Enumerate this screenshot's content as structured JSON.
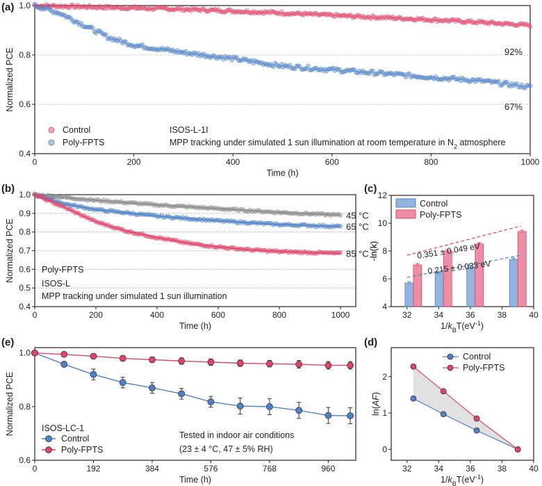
{
  "colors": {
    "control": "#e0446a",
    "poly": "#4f82c6",
    "gray": "#8c8c8c",
    "axis": "#222222",
    "grid": "#aaaaaa",
    "fillShade": "#d9d9d9"
  },
  "chart_data": [
    {
      "panel": "(a)",
      "type": "scatter",
      "xlabel": "Time (h)",
      "ylabel": "Normalized PCE",
      "xlim": [
        0,
        1000
      ],
      "ylim": [
        0.4,
        1.0
      ],
      "xticks": [
        0,
        200,
        400,
        600,
        800,
        1000
      ],
      "yticks": [
        0.4,
        0.6,
        0.8,
        1.0
      ],
      "ytick_labels": [
        "0.4",
        "0.6",
        "0.8",
        "1.0"
      ],
      "gridlines_y": [
        0.6,
        0.8,
        1.0
      ],
      "series": [
        {
          "name": "Control",
          "color": "control",
          "x": [
            0,
            100,
            200,
            300,
            400,
            500,
            600,
            700,
            800,
            900,
            1000
          ],
          "y": [
            1.0,
            0.995,
            0.99,
            0.985,
            0.978,
            0.97,
            0.96,
            0.952,
            0.943,
            0.932,
            0.92
          ],
          "end_label": "92%"
        },
        {
          "name": "Poly-FPTS",
          "color": "poly",
          "x": [
            0,
            50,
            100,
            150,
            200,
            300,
            400,
            500,
            600,
            700,
            800,
            900,
            1000
          ],
          "y": [
            1.0,
            0.97,
            0.92,
            0.87,
            0.84,
            0.81,
            0.785,
            0.755,
            0.74,
            0.725,
            0.71,
            0.695,
            0.67
          ],
          "end_label": "67%"
        }
      ],
      "legend": [
        "Control",
        "Poly-FPTS"
      ],
      "annotations": {
        "protocol": "ISOS-L-1I",
        "condition_prefix": "MPP tracking under simulated 1 sun illumination at room temperature in N",
        "condition_sub": "2",
        "condition_suffix": " atmosphere"
      }
    },
    {
      "panel": "(b)",
      "type": "scatter",
      "xlabel": "Time (h)",
      "ylabel": "Normalized PCE",
      "xlim": [
        0,
        1050
      ],
      "ylim": [
        0.4,
        1.0
      ],
      "xticks": [
        0,
        200,
        400,
        600,
        800,
        1000
      ],
      "yticks": [
        0.4,
        0.5,
        0.6,
        0.7,
        0.8,
        0.9,
        1.0
      ],
      "ytick_labels": [
        "0.4",
        "0.5",
        "0.6",
        "0.7",
        "0.8",
        "0.9",
        "1.0"
      ],
      "gridlines_y": [
        0.5,
        0.6,
        0.7,
        0.8,
        0.9,
        1.0
      ],
      "series": [
        {
          "name": "45 °C",
          "color": "gray",
          "x": [
            0,
            100,
            200,
            400,
            600,
            800,
            1000
          ],
          "y": [
            1.0,
            0.985,
            0.97,
            0.945,
            0.925,
            0.905,
            0.89
          ],
          "end_label": "45 °C"
        },
        {
          "name": "65 °C",
          "color": "poly",
          "x": [
            0,
            100,
            200,
            400,
            600,
            800,
            1000
          ],
          "y": [
            1.0,
            0.95,
            0.92,
            0.885,
            0.86,
            0.84,
            0.83
          ],
          "end_label": "65 °C"
        },
        {
          "name": "85 °C",
          "color": "control",
          "x": [
            0,
            100,
            200,
            300,
            400,
            500,
            600,
            700,
            800,
            900,
            1000
          ],
          "y": [
            1.0,
            0.93,
            0.855,
            0.805,
            0.77,
            0.74,
            0.72,
            0.705,
            0.695,
            0.69,
            0.685
          ],
          "end_label": "85 °C"
        }
      ],
      "annotations": {
        "material": "Poly-FPTS",
        "protocol": "ISOS-L",
        "condition": "MPP tracking under simulated 1 sun illumination"
      }
    },
    {
      "panel": "(c)",
      "type": "bar",
      "xlabel_prefix": "1/",
      "xlabel_k": "k",
      "xlabel_sub": "B",
      "xlabel_suffix": "T(eV",
      "xlabel_sup": "-1",
      "xlabel_close": ")",
      "ylabel": "-ln(k)",
      "xlim": [
        31,
        40
      ],
      "ylim": [
        4,
        12
      ],
      "xticks": [
        32,
        34,
        36,
        38,
        40
      ],
      "yticks": [
        4,
        6,
        8,
        10,
        12
      ],
      "categories_x": [
        32.4,
        34.3,
        36.3,
        39.0
      ],
      "series": [
        {
          "name": "Control",
          "color": "poly",
          "values": [
            5.7,
            6.4,
            6.8,
            7.4
          ],
          "errors": [
            0.1,
            0.1,
            0.1,
            0.1
          ]
        },
        {
          "name": "Poly-FPTS",
          "color": "control",
          "values": [
            7.0,
            8.0,
            8.5,
            9.4
          ],
          "errors": [
            0.1,
            0.1,
            0.1,
            0.1
          ]
        }
      ],
      "fit_labels": {
        "poly": "0.351 ± 0.049 eV",
        "control": "0.215 ± 0.033 eV"
      },
      "legend": [
        "Control",
        "Poly-FPTS"
      ]
    },
    {
      "panel": "(e)",
      "type": "line",
      "xlabel": "Time (h)",
      "ylabel": "Normalized PCE",
      "xlim": [
        0,
        1050
      ],
      "ylim": [
        0.6,
        1.02
      ],
      "xticks": [
        0,
        192,
        384,
        576,
        768,
        960
      ],
      "yticks": [
        0.6,
        0.8,
        1.0
      ],
      "ytick_labels": [
        "0.6",
        "0.8",
        "1.0"
      ],
      "series": [
        {
          "name": "Control",
          "color": "poly",
          "x": [
            0,
            96,
            192,
            288,
            384,
            480,
            576,
            672,
            768,
            864,
            960,
            1032
          ],
          "y": [
            1.0,
            0.958,
            0.92,
            0.89,
            0.87,
            0.848,
            0.818,
            0.802,
            0.8,
            0.786,
            0.767,
            0.766
          ],
          "err": [
            0,
            0.01,
            0.02,
            0.02,
            0.02,
            0.02,
            0.02,
            0.03,
            0.03,
            0.03,
            0.03,
            0.03
          ]
        },
        {
          "name": "Poly-FPTS",
          "color": "control",
          "x": [
            0,
            96,
            192,
            288,
            384,
            480,
            576,
            672,
            768,
            864,
            960,
            1032
          ],
          "y": [
            1.0,
            0.995,
            0.988,
            0.98,
            0.975,
            0.97,
            0.966,
            0.962,
            0.96,
            0.958,
            0.954,
            0.954
          ],
          "err": [
            0,
            0.005,
            0.008,
            0.01,
            0.01,
            0.012,
            0.012,
            0.012,
            0.012,
            0.014,
            0.014,
            0.014
          ]
        }
      ],
      "annotations": {
        "protocol": "ISOS-LC-1",
        "condition1": "Tested in indoor air conditions",
        "condition2": "(23 ± 4 °C, 47 ± 5% RH)"
      },
      "legend": [
        "Control",
        "Poly-FPTS"
      ]
    },
    {
      "panel": "(d)",
      "type": "line",
      "ylabel_prefix": "ln(",
      "ylabel_it": "AF",
      "ylabel_suffix": ")",
      "xlim": [
        31,
        40
      ],
      "ylim": [
        -0.3,
        2.8
      ],
      "xticks": [
        32,
        34,
        36,
        38,
        40
      ],
      "yticks": [
        0,
        1,
        2
      ],
      "series": [
        {
          "name": "Control",
          "color": "poly",
          "x": [
            32.4,
            34.3,
            36.4,
            39.0
          ],
          "y": [
            1.4,
            0.97,
            0.52,
            0.0
          ]
        },
        {
          "name": "Poly-FPTS",
          "color": "control",
          "x": [
            32.4,
            34.3,
            36.4,
            39.0
          ],
          "y": [
            2.28,
            1.6,
            0.85,
            0.0
          ]
        }
      ],
      "legend": [
        "Control",
        "Poly-FPTS"
      ]
    }
  ],
  "panel_labels": {
    "a": "(a)",
    "b": "(b)",
    "c": "(c)",
    "d": "(d)",
    "e": "(e)"
  }
}
